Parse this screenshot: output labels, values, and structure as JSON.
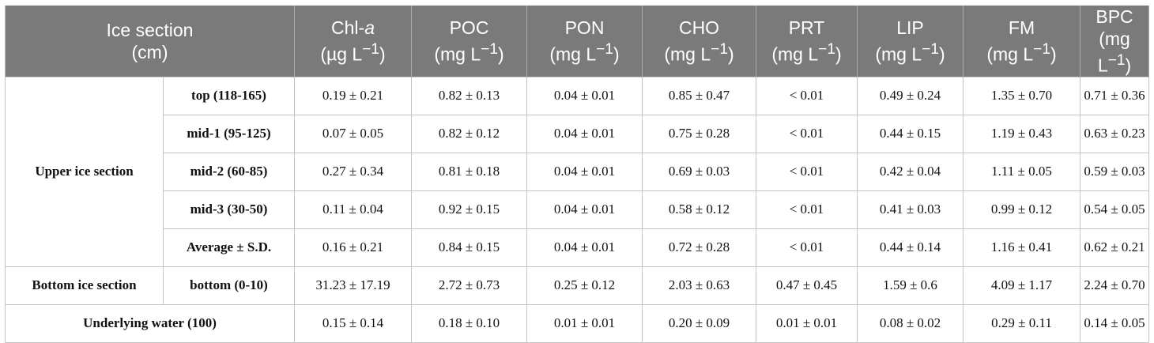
{
  "header": {
    "section_line1": "Ice section",
    "section_line2": "(cm)",
    "columns": [
      {
        "name_pre": "Chl-",
        "name_italic": "a",
        "unit_pre": "(µg L",
        "unit_sup": "−1",
        "unit_post": ")"
      },
      {
        "name_pre": "POC",
        "name_italic": "",
        "unit_pre": "(mg L",
        "unit_sup": "−1",
        "unit_post": ")"
      },
      {
        "name_pre": "PON",
        "name_italic": "",
        "unit_pre": "(mg L",
        "unit_sup": "−1",
        "unit_post": ")"
      },
      {
        "name_pre": "CHO",
        "name_italic": "",
        "unit_pre": "(mg L",
        "unit_sup": "−1",
        "unit_post": ")"
      },
      {
        "name_pre": "PRT",
        "name_italic": "",
        "unit_pre": "(mg L",
        "unit_sup": "−1",
        "unit_post": ")"
      },
      {
        "name_pre": "LIP",
        "name_italic": "",
        "unit_pre": "(mg L",
        "unit_sup": "−1",
        "unit_post": ")"
      },
      {
        "name_pre": "FM",
        "name_italic": "",
        "unit_pre": "(mg L",
        "unit_sup": "−1",
        "unit_post": ")"
      },
      {
        "name_pre": "BPC",
        "name_italic": "",
        "unit_pre": "(mg L",
        "unit_sup": "−1",
        "unit_post": ")"
      }
    ]
  },
  "groups": {
    "upper": "Upper ice section",
    "bottom": "Bottom ice section",
    "underlying": "Underlying water (100)"
  },
  "rows": [
    {
      "label": "top (118-165)",
      "values": [
        "0.19 ± 0.21",
        "0.82 ± 0.13",
        "0.04 ± 0.01",
        "0.85 ± 0.47",
        "< 0.01",
        "0.49 ± 0.24",
        "1.35 ± 0.70",
        "0.71 ± 0.36"
      ]
    },
    {
      "label": "mid-1 (95-125)",
      "values": [
        "0.07 ± 0.05",
        "0.82 ± 0.12",
        "0.04 ± 0.01",
        "0.75 ± 0.28",
        "< 0.01",
        "0.44 ± 0.15",
        "1.19 ± 0.43",
        "0.63 ± 0.23"
      ]
    },
    {
      "label": "mid-2 (60-85)",
      "values": [
        "0.27 ± 0.34",
        "0.81 ± 0.18",
        "0.04 ± 0.01",
        "0.69 ± 0.03",
        "< 0.01",
        "0.42 ± 0.04",
        "1.11 ± 0.05",
        "0.59 ± 0.03"
      ]
    },
    {
      "label": "mid-3 (30-50)",
      "values": [
        "0.11 ± 0.04",
        "0.92 ± 0.15",
        "0.04 ± 0.01",
        "0.58 ± 0.12",
        "< 0.01",
        "0.41 ± 0.03",
        "0.99 ± 0.12",
        "0.54 ± 0.05"
      ]
    },
    {
      "label": "Average ± S.D.",
      "values": [
        "0.16 ± 0.21",
        "0.84 ± 0.15",
        "0.04 ± 0.01",
        "0.72 ± 0.28",
        "< 0.01",
        "0.44 ± 0.14",
        "1.16 ± 0.41",
        "0.62 ± 0.21"
      ]
    },
    {
      "label": "bottom (0-10)",
      "values": [
        "31.23 ± 17.19",
        "2.72 ± 0.73",
        "0.25 ± 0.12",
        "2.03 ± 0.63",
        "0.47 ± 0.45",
        "1.59 ± 0.6",
        "4.09 ± 1.17",
        "2.24 ± 0.70"
      ]
    },
    {
      "label": "",
      "values": [
        "0.15 ± 0.14",
        "0.18 ± 0.10",
        "0.01 ± 0.01",
        "0.20 ± 0.09",
        "0.01 ± 0.01",
        "0.08 ± 0.02",
        "0.29 ± 0.11",
        "0.14 ± 0.05"
      ]
    }
  ],
  "colors": {
    "header_bg": "#7a7a7a",
    "header_text": "#ffffff",
    "grid": "#c4c4c4"
  }
}
